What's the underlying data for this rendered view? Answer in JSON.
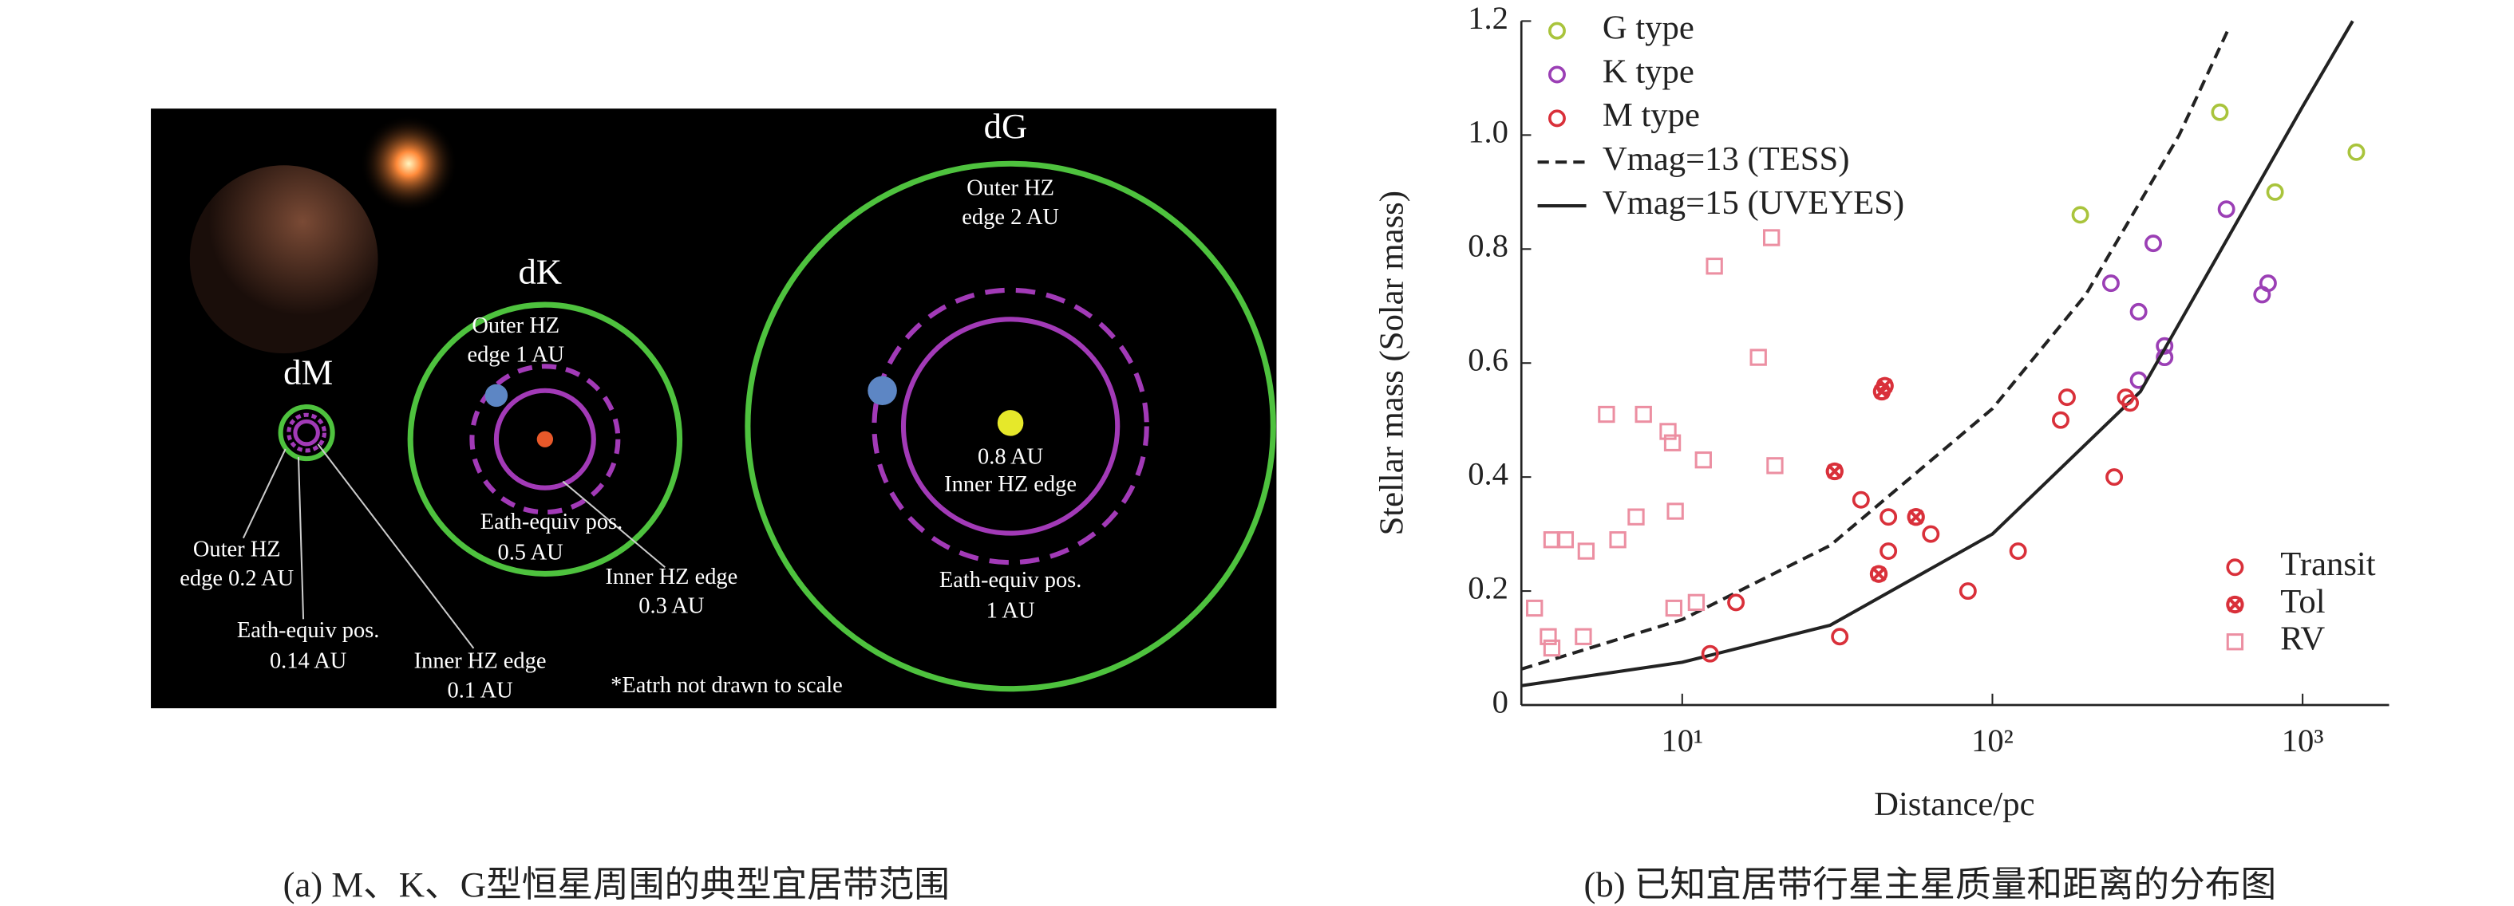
{
  "diagram": {
    "labels": {
      "dM": "dM",
      "dK": "dK",
      "dG": "dG",
      "dG_outer": [
        "Outer HZ",
        "edge 2 AU"
      ],
      "dK_outer": [
        "Outer HZ",
        "edge 1 AU"
      ],
      "dG_inner": [
        "0.8 AU",
        "Inner HZ edge"
      ],
      "dG_earth": [
        "Eath-equiv pos.",
        "1 AU"
      ],
      "dK_earth": [
        "Eath-equiv pos.",
        "0.5 AU"
      ],
      "dK_inner": [
        "Inner HZ edge",
        "0.3 AU"
      ],
      "dM_outer": [
        "Outer HZ",
        "edge 0.2 AU"
      ],
      "dM_earth": [
        "Eath-equiv pos.",
        "0.14 AU"
      ],
      "dM_inner": [
        "Inner HZ edge",
        "0.1 AU"
      ],
      "note": "*Eatrh not drawn to scale"
    },
    "caption": "(a) M、K、G型恒星周围的典型宜居带范围"
  },
  "chart_data": {
    "type": "scatter",
    "caption": "(b) 已知宜居带行星主星质量和距离的分布图",
    "x_label": "Distance/pc",
    "y_label": "Stellar mass (Solar mass)",
    "xscale": "log",
    "xlim": [
      3.03,
      1900
    ],
    "ylim": [
      0,
      1.2
    ],
    "xticks": [
      {
        "value": 10,
        "label": "10¹"
      },
      {
        "value": 100,
        "label": "10²"
      },
      {
        "value": 1000,
        "label": "10³"
      }
    ],
    "yticks": [
      0,
      0.2,
      0.4,
      0.6,
      0.8,
      {
        "value": 1,
        "label": "1.0"
      },
      1.2
    ],
    "legend": "upper left",
    "series": [
      {
        "name": "G type",
        "color": "#a9c43c",
        "marker": "circle",
        "x": [
          192,
          541,
          815,
          1490
        ],
        "values": [
          0.86,
          1.04,
          0.9,
          0.97
        ]
      },
      {
        "name": "K type",
        "color": "#9b3fb5",
        "marker": "circle",
        "x": [
          241,
          296,
          330,
          296,
          359,
          359,
          568,
          740,
          774
        ],
        "values": [
          0.74,
          0.69,
          0.81,
          0.57,
          0.63,
          0.61,
          0.87,
          0.72,
          0.74
        ]
      },
      {
        "name": "M type",
        "color": "#d9303a",
        "marker": "circle"
      },
      {
        "name": "Vmag=13 (TESS)",
        "color": "#222222",
        "marker": "dashed",
        "x": [
          3.03,
          10,
          30,
          100,
          200,
          400,
          581
        ],
        "values": [
          0.063,
          0.15,
          0.28,
          0.52,
          0.72,
          1.0,
          1.19
        ]
      },
      {
        "name": "Vmag=15 (UVEYES)",
        "color": "#222222",
        "marker": "solid",
        "x": [
          3.03,
          10,
          30,
          100,
          300,
          1000,
          1450
        ],
        "values": [
          0.034,
          0.075,
          0.14,
          0.3,
          0.55,
          1.05,
          1.2
        ]
      }
    ],
    "method_legend": "lower right",
    "methods": [
      {
        "name": "Transit",
        "color": "#d9303a",
        "marker": "circle",
        "x": [
          12.3,
          14.9,
          32.2,
          37.7,
          46.2,
          46.2,
          63.3,
          83.4,
          121,
          166,
          174,
          247,
          269,
          278
        ],
        "values": [
          0.09,
          0.18,
          0.12,
          0.36,
          0.33,
          0.27,
          0.3,
          0.2,
          0.27,
          0.5,
          0.54,
          0.4,
          0.54,
          0.53
        ]
      },
      {
        "name": "Tol",
        "color": "#d9303a",
        "marker": "cross",
        "x": [
          31,
          43,
          44,
          45,
          56.7
        ],
        "values": [
          0.41,
          0.23,
          0.55,
          0.56,
          0.33
        ]
      },
      {
        "name": "RV",
        "color": "#ec8fa2",
        "marker": "square",
        "x": [
          3.34,
          3.7,
          3.8,
          3.8,
          4.2,
          4.9,
          4.8,
          5.7,
          6.2,
          7.1,
          7.5,
          9.0,
          9.3,
          9.4,
          9.5,
          11.1,
          11.7,
          12.7,
          17.6,
          19.4,
          19.9
        ],
        "values": [
          0.17,
          0.12,
          0.1,
          0.29,
          0.29,
          0.27,
          0.12,
          0.51,
          0.29,
          0.33,
          0.51,
          0.48,
          0.46,
          0.17,
          0.34,
          0.18,
          0.43,
          0.77,
          0.61,
          0.82,
          0.42
        ]
      }
    ]
  }
}
